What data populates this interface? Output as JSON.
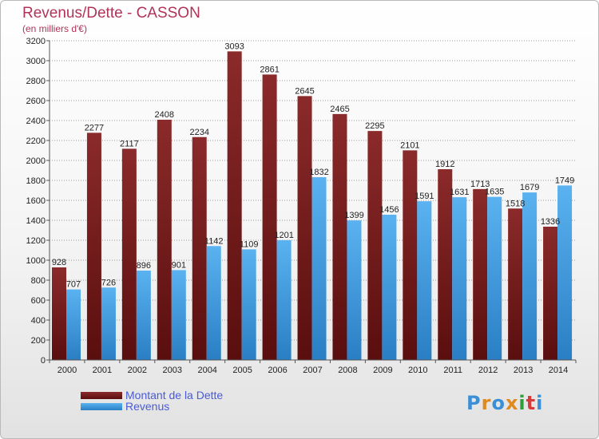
{
  "title": "Revenus/Dette - CASSON",
  "subtitle": "(en milliers d'€)",
  "legend": {
    "items": [
      {
        "label": "Montant de la Dette",
        "color": "#7a1c1c"
      },
      {
        "label": "Revenus",
        "color": "#3f9be0"
      }
    ]
  },
  "logo": {
    "text": "Proxiti",
    "colors": [
      "#3a8fd6",
      "#e08a1e",
      "#3a8fd6",
      "#e08a1e",
      "#2e9e3a",
      "#d63a3a",
      "#3a8fd6"
    ]
  },
  "colors": {
    "dette": "#7a1c1c",
    "revenus": "#3f9be0",
    "axis": "#555555",
    "grid": "#9a9a9a"
  },
  "chart_data": {
    "type": "bar",
    "title": "Revenus/Dette - CASSON",
    "subtitle": "(en milliers d'€)",
    "categories": [
      "2000",
      "2001",
      "2002",
      "2003",
      "2004",
      "2005",
      "2006",
      "2007",
      "2008",
      "2009",
      "2010",
      "2011",
      "2012",
      "2013",
      "2014"
    ],
    "series": [
      {
        "name": "Montant de la Dette",
        "values": [
          928,
          2277,
          2117,
          2408,
          2234,
          3093,
          2861,
          2645,
          2465,
          2295,
          2101,
          1912,
          1713,
          1518,
          1336
        ]
      },
      {
        "name": "Revenus",
        "values": [
          707,
          726,
          896,
          901,
          1142,
          1109,
          1201,
          1832,
          1399,
          1456,
          1591,
          1631,
          1635,
          1679,
          1749
        ]
      }
    ],
    "ylim": [
      0,
      3200
    ],
    "yticks": [
      0,
      200,
      400,
      600,
      800,
      1000,
      1200,
      1400,
      1600,
      1800,
      2000,
      2200,
      2400,
      2600,
      2800,
      3000,
      3200
    ],
    "grid": true,
    "legend_position": "bottom-left"
  }
}
